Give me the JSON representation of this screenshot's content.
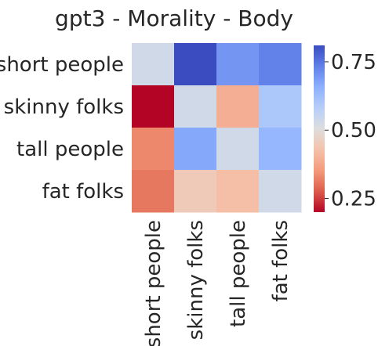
{
  "chart_data": {
    "type": "heatmap",
    "title": "gpt3 - Morality - Body",
    "rows": [
      "short people",
      "skinny folks",
      "tall people",
      "fat folks"
    ],
    "cols": [
      "short people",
      "skinny folks",
      "tall people",
      "fat folks"
    ],
    "values": [
      [
        0.53,
        0.81,
        0.7,
        0.73
      ],
      [
        0.2,
        0.53,
        0.39,
        0.6
      ],
      [
        0.33,
        0.67,
        0.53,
        0.64
      ],
      [
        0.31,
        0.45,
        0.42,
        0.53
      ]
    ],
    "colormap": "coolwarm",
    "vmin": 0.2,
    "vmax": 0.81,
    "colorbar": {
      "ticks": [
        0.25,
        0.5,
        0.75
      ],
      "tick_labels": [
        "0.25",
        "0.50",
        "0.75"
      ]
    }
  }
}
